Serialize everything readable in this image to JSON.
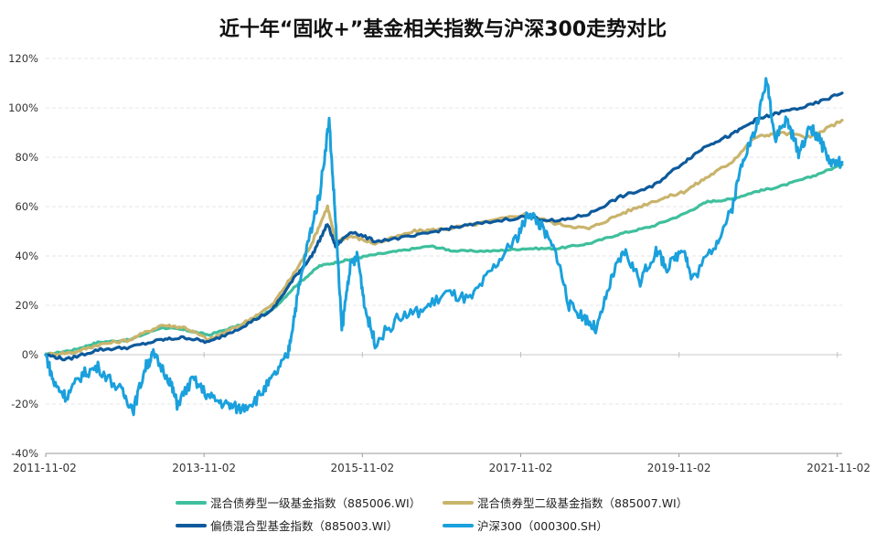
{
  "chart_data": {
    "type": "line",
    "title": "近十年“固收+”基金相关指数与沪深300走势对比",
    "xlabel": "",
    "ylabel": "",
    "x_ticks": [
      "2011-11-02",
      "2013-11-02",
      "2015-11-02",
      "2017-11-02",
      "2019-11-02",
      "2021-11-02"
    ],
    "y_ticks": [
      "120%",
      "100%",
      "80%",
      "60%",
      "40%",
      "20%",
      "0%",
      "-20%",
      "-40%"
    ],
    "ylim": [
      -40,
      120
    ],
    "xlim": [
      2011.84,
      2021.9
    ],
    "grid": true,
    "legend_position": "bottom",
    "series": [
      {
        "name": "混合债券型一级基金指数（885006.WI）",
        "color": "#3fbf9d",
        "points": [
          [
            2011.84,
            0
          ],
          [
            2012.2,
            2
          ],
          [
            2012.5,
            5
          ],
          [
            2012.9,
            6
          ],
          [
            2013.3,
            11
          ],
          [
            2013.6,
            10
          ],
          [
            2013.9,
            8
          ],
          [
            2014.3,
            12
          ],
          [
            2014.7,
            18
          ],
          [
            2015.0,
            28
          ],
          [
            2015.3,
            36
          ],
          [
            2015.6,
            38
          ],
          [
            2015.9,
            40
          ],
          [
            2016.3,
            42
          ],
          [
            2016.7,
            44
          ],
          [
            2017.0,
            42
          ],
          [
            2017.5,
            42
          ],
          [
            2017.9,
            43
          ],
          [
            2018.3,
            43
          ],
          [
            2018.7,
            45
          ],
          [
            2019.1,
            49
          ],
          [
            2019.5,
            52
          ],
          [
            2019.9,
            57
          ],
          [
            2020.2,
            62
          ],
          [
            2020.5,
            63
          ],
          [
            2020.8,
            66
          ],
          [
            2021.1,
            68
          ],
          [
            2021.5,
            72
          ],
          [
            2021.9,
            77
          ]
        ]
      },
      {
        "name": "混合债券型二级基金指数（885007.WI）",
        "color": "#c9b46c",
        "points": [
          [
            2011.84,
            0
          ],
          [
            2012.2,
            1
          ],
          [
            2012.5,
            4
          ],
          [
            2012.9,
            6
          ],
          [
            2013.3,
            12
          ],
          [
            2013.6,
            11
          ],
          [
            2013.9,
            6
          ],
          [
            2014.3,
            12
          ],
          [
            2014.7,
            20
          ],
          [
            2015.0,
            34
          ],
          [
            2015.2,
            45
          ],
          [
            2015.4,
            60
          ],
          [
            2015.5,
            46
          ],
          [
            2015.7,
            48
          ],
          [
            2016.0,
            45
          ],
          [
            2016.5,
            50
          ],
          [
            2016.9,
            51
          ],
          [
            2017.3,
            53
          ],
          [
            2017.9,
            57
          ],
          [
            2018.3,
            53
          ],
          [
            2018.7,
            51
          ],
          [
            2019.1,
            57
          ],
          [
            2019.5,
            62
          ],
          [
            2019.9,
            66
          ],
          [
            2020.2,
            72
          ],
          [
            2020.5,
            78
          ],
          [
            2020.8,
            88
          ],
          [
            2021.1,
            90
          ],
          [
            2021.5,
            88
          ],
          [
            2021.9,
            95
          ]
        ]
      },
      {
        "name": "偏债混合型基金指数（885003.WI）",
        "color": "#0d5a9c",
        "points": [
          [
            2011.84,
            0
          ],
          [
            2012.1,
            -2
          ],
          [
            2012.5,
            2
          ],
          [
            2012.9,
            3
          ],
          [
            2013.3,
            6
          ],
          [
            2013.6,
            7
          ],
          [
            2013.9,
            5
          ],
          [
            2014.3,
            11
          ],
          [
            2014.7,
            18
          ],
          [
            2015.0,
            32
          ],
          [
            2015.2,
            40
          ],
          [
            2015.4,
            53
          ],
          [
            2015.5,
            44
          ],
          [
            2015.7,
            50
          ],
          [
            2016.0,
            46
          ],
          [
            2016.5,
            48
          ],
          [
            2016.9,
            51
          ],
          [
            2017.3,
            53
          ],
          [
            2017.9,
            56
          ],
          [
            2018.3,
            54
          ],
          [
            2018.7,
            57
          ],
          [
            2019.1,
            64
          ],
          [
            2019.5,
            68
          ],
          [
            2019.9,
            78
          ],
          [
            2020.2,
            85
          ],
          [
            2020.5,
            89
          ],
          [
            2020.8,
            95
          ],
          [
            2021.1,
            98
          ],
          [
            2021.5,
            101
          ],
          [
            2021.9,
            106
          ]
        ]
      },
      {
        "name": "沪深300（000300.SH）",
        "color": "#1aa0dc",
        "points": [
          [
            2011.84,
            0
          ],
          [
            2011.95,
            -12
          ],
          [
            2012.1,
            -17
          ],
          [
            2012.3,
            -8
          ],
          [
            2012.5,
            -5
          ],
          [
            2012.8,
            -15
          ],
          [
            2012.95,
            -22
          ],
          [
            2013.1,
            -5
          ],
          [
            2013.2,
            0
          ],
          [
            2013.4,
            -10
          ],
          [
            2013.5,
            -20
          ],
          [
            2013.7,
            -10
          ],
          [
            2013.9,
            -17
          ],
          [
            2014.1,
            -20
          ],
          [
            2014.3,
            -22
          ],
          [
            2014.5,
            -18
          ],
          [
            2014.7,
            -10
          ],
          [
            2014.9,
            0
          ],
          [
            2015.0,
            20
          ],
          [
            2015.15,
            45
          ],
          [
            2015.3,
            65
          ],
          [
            2015.42,
            95
          ],
          [
            2015.5,
            55
          ],
          [
            2015.58,
            10
          ],
          [
            2015.68,
            35
          ],
          [
            2015.78,
            40
          ],
          [
            2015.88,
            18
          ],
          [
            2016.0,
            5
          ],
          [
            2016.3,
            15
          ],
          [
            2016.6,
            18
          ],
          [
            2016.9,
            25
          ],
          [
            2017.2,
            22
          ],
          [
            2017.5,
            35
          ],
          [
            2017.8,
            48
          ],
          [
            2017.95,
            58
          ],
          [
            2018.1,
            52
          ],
          [
            2018.3,
            40
          ],
          [
            2018.45,
            20
          ],
          [
            2018.65,
            15
          ],
          [
            2018.8,
            10
          ],
          [
            2019.0,
            32
          ],
          [
            2019.15,
            42
          ],
          [
            2019.35,
            30
          ],
          [
            2019.55,
            42
          ],
          [
            2019.7,
            35
          ],
          [
            2019.9,
            44
          ],
          [
            2020.0,
            30
          ],
          [
            2020.3,
            45
          ],
          [
            2020.5,
            58
          ],
          [
            2020.65,
            80
          ],
          [
            2020.8,
            90
          ],
          [
            2020.95,
            112
          ],
          [
            2021.05,
            88
          ],
          [
            2021.2,
            95
          ],
          [
            2021.35,
            82
          ],
          [
            2021.5,
            92
          ],
          [
            2021.6,
            88
          ],
          [
            2021.75,
            78
          ],
          [
            2021.9,
            78
          ]
        ]
      }
    ]
  }
}
